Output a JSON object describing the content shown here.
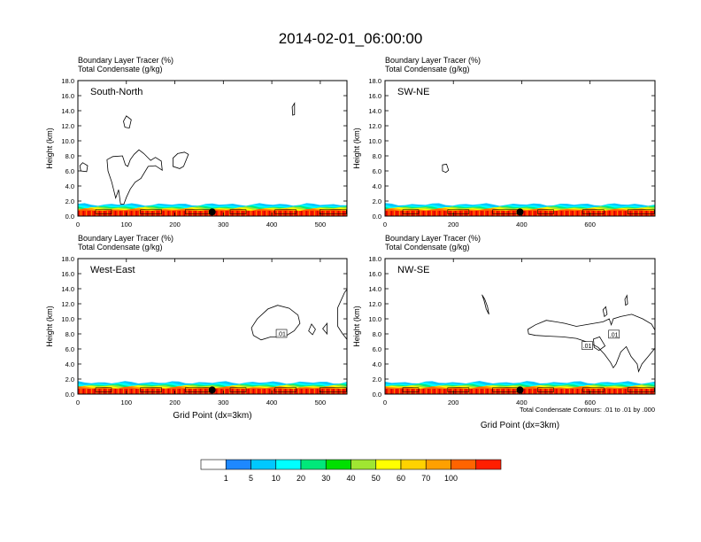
{
  "page": {
    "title": "2014-02-01_06:00:00"
  },
  "panels": [
    {
      "id": "sn",
      "label": "South-North",
      "var1": "Boundary Layer Tracer   (%)",
      "var2": "Total Condensate   (g/kg)",
      "xticks": [
        0,
        100,
        200,
        300,
        400,
        500
      ],
      "xmax": 555,
      "dot_x": 277,
      "clouds": [
        {
          "points": [
            [
              10,
              7.1
            ],
            [
              4,
              6.7
            ],
            [
              6,
              6.0
            ],
            [
              18,
              5.9
            ],
            [
              20,
              6.7
            ]
          ],
          "label": ""
        },
        {
          "points": [
            [
              60,
              7.5
            ],
            [
              72,
              7.9
            ],
            [
              92,
              8.0
            ],
            [
              98,
              6.8
            ],
            [
              103,
              6.6
            ],
            [
              108,
              7.5
            ],
            [
              116,
              8.2
            ],
            [
              126,
              8.8
            ],
            [
              136,
              8.3
            ],
            [
              150,
              7.4
            ],
            [
              160,
              7.8
            ],
            [
              172,
              7.3
            ],
            [
              174,
              6.1
            ],
            [
              160,
              6.7
            ],
            [
              145,
              6.6
            ],
            [
              130,
              5.0
            ],
            [
              118,
              4.5
            ],
            [
              108,
              3.6
            ],
            [
              100,
              2.5
            ],
            [
              95,
              1.6
            ],
            [
              88,
              1.6
            ],
            [
              84,
              3.5
            ],
            [
              78,
              2.4
            ],
            [
              70,
              4.5
            ],
            [
              62,
              6.0
            ]
          ],
          "label": ""
        },
        {
          "points": [
            [
              196,
              7.7
            ],
            [
              206,
              8.3
            ],
            [
              220,
              8.5
            ],
            [
              228,
              8.2
            ],
            [
              218,
              6.6
            ],
            [
              210,
              6.3
            ],
            [
              196,
              6.6
            ]
          ],
          "label": ""
        },
        {
          "points": [
            [
              94,
              12.6
            ],
            [
              100,
              13.3
            ],
            [
              110,
              12.8
            ],
            [
              106,
              11.7
            ],
            [
              97,
              11.8
            ]
          ],
          "label": ""
        },
        {
          "points": [
            [
              442,
              14.5
            ],
            [
              447,
              15.0
            ],
            [
              447,
              13.5
            ],
            [
              443,
              13.4
            ]
          ],
          "label": ""
        }
      ],
      "show_xlabel": false,
      "show_footer": false
    },
    {
      "id": "swne",
      "label": "SW-NE",
      "var1": "Boundary Layer Tracer   (%)",
      "var2": "Total Condensate   (g/kg)",
      "xticks": [
        0,
        200,
        400,
        600
      ],
      "xmax": 790,
      "dot_x": 395,
      "clouds": [
        {
          "points": [
            [
              168,
              6.8
            ],
            [
              180,
              6.9
            ],
            [
              186,
              6.1
            ],
            [
              178,
              5.8
            ],
            [
              168,
              6.0
            ]
          ],
          "label": ""
        }
      ],
      "show_xlabel": false,
      "show_footer": false
    },
    {
      "id": "we",
      "label": "West-East",
      "var1": "Boundary Layer Tracer   (%)",
      "var2": "Total Condensate   (g/kg)",
      "xticks": [
        0,
        100,
        200,
        300,
        400,
        500
      ],
      "xmax": 555,
      "dot_x": 277,
      "clouds": [
        {
          "points": [
            [
              358,
              8.8
            ],
            [
              370,
              10.0
            ],
            [
              392,
              11.3
            ],
            [
              412,
              11.8
            ],
            [
              436,
              11.4
            ],
            [
              454,
              10.5
            ],
            [
              458,
              9.4
            ],
            [
              446,
              8.4
            ],
            [
              426,
              7.6
            ],
            [
              398,
              7.6
            ],
            [
              378,
              7.2
            ],
            [
              362,
              7.8
            ]
          ],
          "label": ".01",
          "lx": 420,
          "ly": 8.0
        },
        {
          "points": [
            [
              476,
              8.4
            ],
            [
              482,
              9.3
            ],
            [
              490,
              8.6
            ],
            [
              484,
              7.9
            ]
          ],
          "label": ""
        },
        {
          "points": [
            [
              546,
              8.0
            ],
            [
              536,
              9.0
            ],
            [
              536,
              11.5
            ],
            [
              550,
              13.5
            ],
            [
              556,
              14.0
            ],
            [
              556,
              7.2
            ]
          ],
          "label": ""
        },
        {
          "points": [
            [
              505,
              8.7
            ],
            [
              514,
              9.4
            ],
            [
              514,
              8.0
            ]
          ],
          "label": ""
        }
      ],
      "show_xlabel": true,
      "xlabel": "Grid Point (dx=3km)",
      "show_footer": false
    },
    {
      "id": "nwse",
      "label": "NW-SE",
      "var1": "Boundary Layer Tracer   (%)",
      "var2": "Total Condensate   (g/kg)",
      "xticks": [
        0,
        200,
        400,
        600
      ],
      "xmax": 790,
      "dot_x": 395,
      "clouds": [
        {
          "points": [
            [
              418,
              8.6
            ],
            [
              440,
              9.2
            ],
            [
              472,
              9.8
            ],
            [
              500,
              9.6
            ],
            [
              526,
              9.4
            ],
            [
              560,
              9.0
            ],
            [
              600,
              9.3
            ],
            [
              638,
              9.6
            ],
            [
              656,
              10.0
            ],
            [
              662,
              9.2
            ],
            [
              668,
              10.0
            ],
            [
              690,
              10.3
            ],
            [
              722,
              10.6
            ],
            [
              754,
              10.0
            ],
            [
              780,
              9.3
            ],
            [
              790,
              8.5
            ],
            [
              790,
              6.1
            ],
            [
              774,
              5.2
            ],
            [
              752,
              4.0
            ],
            [
              742,
              3.0
            ],
            [
              738,
              4.0
            ],
            [
              720,
              5.0
            ],
            [
              706,
              6.3
            ],
            [
              690,
              5.6
            ],
            [
              676,
              4.0
            ],
            [
              668,
              3.5
            ],
            [
              660,
              4.2
            ],
            [
              642,
              5.3
            ],
            [
              624,
              6.2
            ],
            [
              600,
              6.8
            ],
            [
              560,
              7.4
            ],
            [
              520,
              7.6
            ],
            [
              480,
              7.7
            ],
            [
              440,
              7.8
            ],
            [
              420,
              8.0
            ]
          ],
          "label": ".01",
          "lx": 670,
          "ly": 7.9
        },
        {
          "points": [
            [
              284,
              13.2
            ],
            [
              292,
              12.6
            ],
            [
              300,
              11.6
            ],
            [
              304,
              10.6
            ],
            [
              296,
              11.3
            ],
            [
              290,
              12.4
            ]
          ],
          "label": ""
        },
        {
          "points": [
            [
              638,
              11.2
            ],
            [
              646,
              11.6
            ],
            [
              650,
              10.6
            ],
            [
              642,
              10.3
            ]
          ],
          "label": ""
        },
        {
          "points": [
            [
              702,
              12.6
            ],
            [
              708,
              13.1
            ],
            [
              710,
              12.0
            ],
            [
              704,
              11.8
            ]
          ],
          "label": ""
        },
        {
          "points": [
            [
              610,
              7.3
            ],
            [
              628,
              7.6
            ],
            [
              644,
              6.4
            ],
            [
              626,
              5.8
            ],
            [
              612,
              6.2
            ]
          ],
          "label": ".01",
          "lx": 592,
          "ly": 6.4
        }
      ],
      "show_xlabel": true,
      "xlabel": "Grid Point (dx=3km)",
      "show_footer": true,
      "footer": "Total Condensate Contours: .01 to .01 by .000"
    }
  ],
  "axis": {
    "ylabel": "Height (km)",
    "yticks": [
      "0.0",
      "2.0",
      "4.0",
      "6.0",
      "8.0",
      "10.0",
      "12.0",
      "14.0",
      "16.0",
      "18.0"
    ],
    "ymax": 18
  },
  "colorbar": {
    "colors": [
      "#ffffff",
      "#1e88ff",
      "#00c8ff",
      "#00ffff",
      "#00e87a",
      "#00e000",
      "#a0e632",
      "#ffff00",
      "#ffd200",
      "#ffa000",
      "#ff6400",
      "#ff1e00"
    ],
    "labels": [
      "1",
      "5",
      "10",
      "20",
      "30",
      "40",
      "50",
      "60",
      "70",
      "100"
    ]
  },
  "chart_data": {
    "type": "heatmap",
    "title": "2014-02-01_06:00:00",
    "ylabel": "Height (km)",
    "xlabel": "Grid Point (dx=3km)",
    "ylim": [
      0,
      18
    ],
    "panels": [
      "South-North",
      "SW-NE",
      "West-East",
      "NW-SE"
    ],
    "fields": [
      "Boundary Layer Tracer   (%)",
      "Total Condensate   (g/kg)"
    ],
    "contour_levels": [
      0.01
    ],
    "shading_levels": [
      1,
      5,
      10,
      20,
      30,
      40,
      50,
      60,
      70,
      100
    ]
  }
}
